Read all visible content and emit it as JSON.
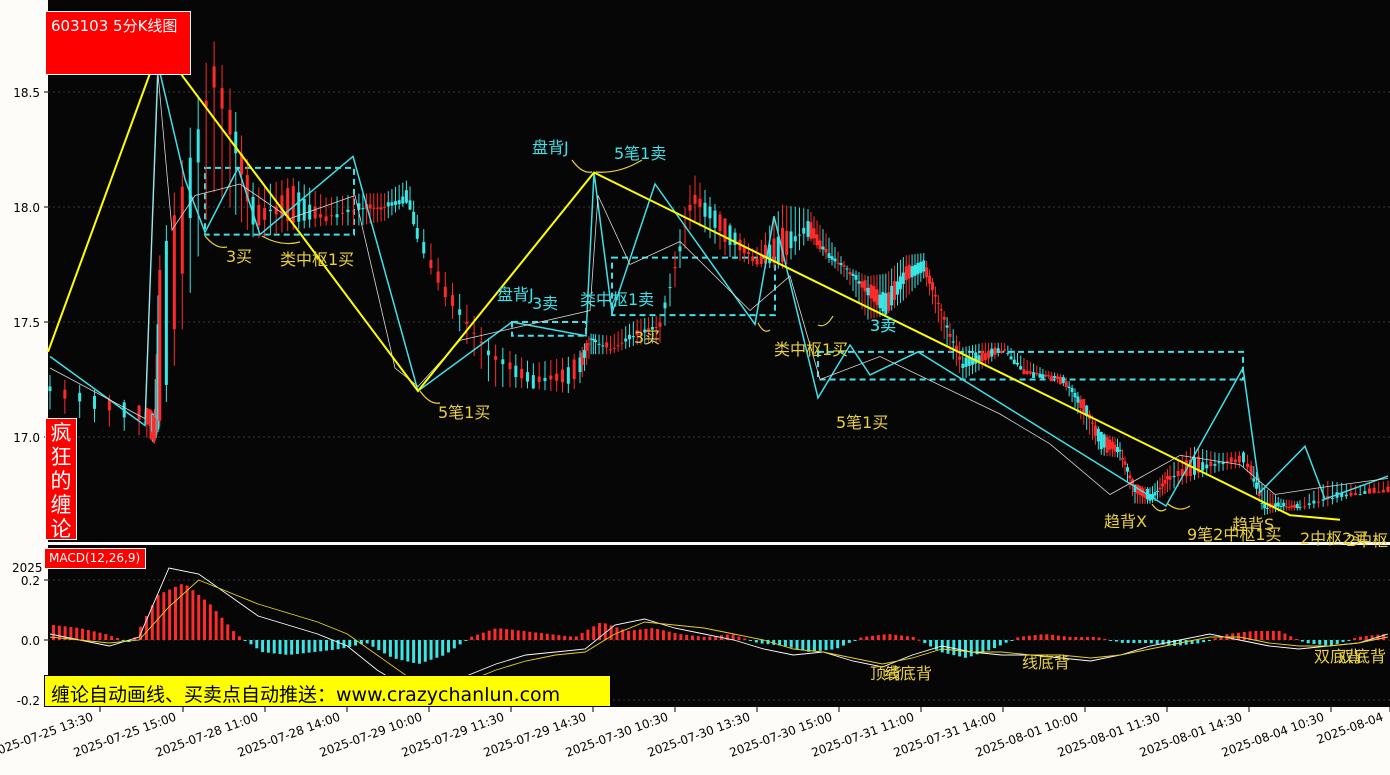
{
  "header": {
    "title": "603103 5分K线图"
  },
  "sidebar": {
    "chars": [
      "疯",
      "狂",
      "的",
      "缠",
      "论"
    ]
  },
  "macd": {
    "label": "MACD(12,26,9)",
    "corner_label": "2025"
  },
  "promo": {
    "text": "缠论自动画线、买卖点自动推送：www.crazychanlun.com"
  },
  "colors": {
    "background": "#060606",
    "up": "#ff2a2a",
    "down": "#39e6e6",
    "stroke": "#ffff00",
    "bi": "#40e0e8",
    "dif": "#ffffff",
    "dea": "#e8d020",
    "buy": "#e8d040",
    "sell": "#40e0e8"
  },
  "chart_data": [
    {
      "type": "candlestick",
      "title": "603103 5分K线图",
      "ylim": [
        16.5,
        18.85
      ],
      "yticks": [
        "18.5",
        "18.0",
        "17.5",
        "17.0"
      ],
      "xticks": [
        "2025-07-25 13:30",
        "2025-07-25 15:00",
        "2025-07-28 11:00",
        "2025-07-28 14:00",
        "2025-07-29 10:00",
        "2025-07-29 11:30",
        "2025-07-29 14:30",
        "2025-07-30 10:30",
        "2025-07-30 13:30",
        "2025-07-30 15:00",
        "2025-07-31 11:00",
        "2025-07-31 14:00",
        "2025-08-01 10:00",
        "2025-08-01 11:30",
        "2025-08-01 14:30",
        "2025-08-04 10:30",
        "2025-08-04"
      ],
      "bar_count": 330,
      "candles": [
        [
          17.22,
          17.2,
          17.27,
          17.12
        ],
        [
          17.13,
          17.06,
          17.13,
          17.0
        ],
        [
          17.09,
          16.99,
          17.09,
          16.97
        ],
        [
          17.07,
          17.78,
          17.83,
          17.05
        ],
        [
          18.63,
          18.55,
          18.74,
          18.07
        ],
        [
          18.02,
          17.9,
          18.08,
          17.86
        ],
        [
          17.93,
          18.09,
          18.13,
          17.9
        ],
        [
          17.96,
          17.95,
          18.04,
          17.92
        ],
        [
          17.99,
          18.01,
          18.06,
          17.92
        ],
        [
          18.0,
          18.0,
          18.06,
          17.94
        ],
        [
          18.02,
          18.07,
          18.12,
          18.02
        ],
        [
          17.61,
          17.66,
          17.72,
          17.57
        ],
        [
          17.36,
          17.35,
          17.41,
          17.22
        ],
        [
          17.27,
          17.21,
          17.32,
          17.21
        ],
        [
          17.23,
          17.31,
          17.35,
          17.19
        ],
        [
          17.43,
          17.43,
          17.45,
          17.36
        ],
        [
          17.38,
          17.39,
          17.44,
          17.36
        ],
        [
          17.44,
          17.45,
          17.51,
          17.4
        ],
        [
          17.48,
          17.5,
          17.53,
          17.41
        ],
        [
          18.06,
          18.03,
          18.15,
          17.95
        ],
        [
          17.95,
          17.86,
          17.95,
          17.79
        ],
        [
          17.75,
          17.77,
          17.81,
          17.74
        ],
        [
          17.76,
          17.9,
          18.01,
          17.73
        ],
        [
          17.95,
          17.87,
          17.99,
          17.86
        ],
        [
          17.78,
          17.8,
          17.87,
          17.76
        ],
        [
          17.73,
          17.73,
          17.74,
          17.68
        ],
        [
          17.62,
          17.66,
          17.7,
          17.51
        ],
        [
          17.53,
          17.62,
          17.71,
          17.53
        ],
        [
          17.68,
          17.74,
          17.79,
          17.6
        ],
        [
          17.72,
          17.78,
          17.8,
          17.69
        ],
        [
          17.54,
          17.52,
          17.56,
          17.44
        ],
        [
          17.3,
          17.33,
          17.39,
          17.25
        ],
        [
          17.33,
          17.38,
          17.41,
          17.3
        ],
        [
          17.38,
          17.37,
          17.41,
          17.37
        ],
        [
          17.29,
          17.28,
          17.34,
          17.27
        ],
        [
          17.27,
          17.26,
          17.29,
          17.26
        ],
        [
          17.26,
          17.24,
          17.27,
          17.22
        ],
        [
          17.11,
          17.17,
          17.17,
          17.06
        ],
        [
          17.02,
          16.94,
          17.02,
          16.92
        ],
        [
          16.95,
          16.94,
          16.99,
          16.91
        ],
        [
          16.76,
          16.79,
          16.79,
          16.71
        ],
        [
          16.72,
          16.75,
          16.78,
          16.71
        ],
        [
          16.83,
          16.81,
          16.86,
          16.76
        ],
        [
          16.83,
          16.91,
          16.96,
          16.81
        ],
        [
          16.89,
          16.88,
          16.93,
          16.85
        ],
        [
          16.89,
          16.92,
          16.94,
          16.87
        ],
        [
          16.69,
          16.7,
          16.78,
          16.66
        ],
        [
          16.7,
          16.71,
          16.73,
          16.68
        ],
        [
          16.69,
          16.7,
          16.72,
          16.68
        ],
        [
          16.73,
          16.74,
          16.81,
          16.7
        ],
        [
          16.75,
          16.76,
          16.79,
          16.75
        ],
        [
          16.76,
          16.78,
          16.81,
          16.76
        ]
      ],
      "zhongshu": [
        [
          17.88,
          18.17
        ],
        [
          17.44,
          17.5
        ],
        [
          17.53,
          17.78
        ],
        [
          17.25,
          17.37
        ]
      ],
      "annotations": [
        {
          "text": "3买",
          "kind": "buy"
        },
        {
          "text": "类中枢1买",
          "kind": "buy"
        },
        {
          "text": "5笔1买",
          "kind": "buy"
        },
        {
          "text": "盘背J",
          "kind": "sell"
        },
        {
          "text": "5笔1卖",
          "kind": "sell"
        },
        {
          "text": "3卖",
          "kind": "sell"
        },
        {
          "text": "类中枢1卖",
          "kind": "sell"
        },
        {
          "text": "3买",
          "kind": "buy"
        },
        {
          "text": "类中枢1买",
          "kind": "buy"
        },
        {
          "text": "3卖",
          "kind": "sell"
        },
        {
          "text": "5笔1买",
          "kind": "buy"
        },
        {
          "text": "盘背J",
          "kind": "sell"
        },
        {
          "text": "3卖",
          "kind": "sell"
        },
        {
          "text": "趋背X",
          "kind": "buy"
        },
        {
          "text": "9笔2中枢1买",
          "kind": "buy"
        },
        {
          "text": "趋背S",
          "kind": "buy"
        },
        {
          "text": "2中枢2买",
          "kind": "buy"
        },
        {
          "text": "2中枢",
          "kind": "buy"
        }
      ]
    },
    {
      "type": "bar",
      "title": "MACD(12,26,9)",
      "ylim": [
        -0.22,
        0.26
      ],
      "yticks": [
        "0.2",
        "0.0",
        "-0.2"
      ],
      "histogram": [
        0.05,
        0.04,
        0.02,
        -0.01,
        0.15,
        0.19,
        0.12,
        0.02,
        -0.04,
        -0.05,
        -0.04,
        -0.03,
        -0.01,
        -0.06,
        -0.08,
        -0.05,
        0.01,
        0.04,
        0.03,
        0.02,
        0.01,
        0.06,
        0.03,
        0.04,
        0.02,
        0.01,
        0.02,
        -0.01,
        -0.02,
        -0.04,
        -0.03,
        0.01,
        0.02,
        0.01,
        -0.04,
        -0.06,
        -0.03,
        0.01,
        0.02,
        0.01,
        0.01,
        -0.01,
        -0.01,
        -0.02,
        -0.01,
        0.02,
        0.03,
        0.03,
        -0.01,
        -0.02,
        0.01,
        0.02
      ],
      "dif": [
        0.02,
        0.0,
        -0.02,
        0.01,
        0.24,
        0.22,
        0.15,
        0.08,
        0.05,
        0.02,
        -0.02,
        -0.1,
        -0.16,
        -0.16,
        -0.12,
        -0.08,
        -0.05,
        -0.04,
        -0.03,
        0.05,
        0.07,
        0.04,
        0.02,
        0.0,
        -0.03,
        -0.05,
        -0.04,
        -0.07,
        -0.09,
        -0.05,
        -0.02,
        -0.04,
        -0.05,
        -0.05,
        -0.06,
        -0.07,
        -0.05,
        -0.02,
        0.0,
        0.02,
        0.0,
        -0.02,
        -0.03,
        -0.02,
        -0.01,
        0.02
      ],
      "dea": [
        0.01,
        0.0,
        -0.01,
        0.0,
        0.11,
        0.2,
        0.16,
        0.12,
        0.09,
        0.06,
        0.02,
        -0.05,
        -0.12,
        -0.15,
        -0.14,
        -0.1,
        -0.07,
        -0.05,
        -0.04,
        0.02,
        0.06,
        0.05,
        0.04,
        0.02,
        0.0,
        -0.03,
        -0.04,
        -0.06,
        -0.08,
        -0.06,
        -0.03,
        -0.04,
        -0.04,
        -0.05,
        -0.05,
        -0.06,
        -0.05,
        -0.03,
        -0.01,
        0.01,
        0.01,
        -0.01,
        -0.02,
        -0.02,
        -0.01,
        0.01
      ],
      "annotations": [
        {
          "text": "顶背",
          "kind": "buy"
        },
        {
          "text": "线底背",
          "kind": "buy"
        },
        {
          "text": "线底背",
          "kind": "buy"
        },
        {
          "text": "双底背",
          "kind": "buy"
        },
        {
          "text": "双底背",
          "kind": "buy"
        }
      ]
    }
  ]
}
